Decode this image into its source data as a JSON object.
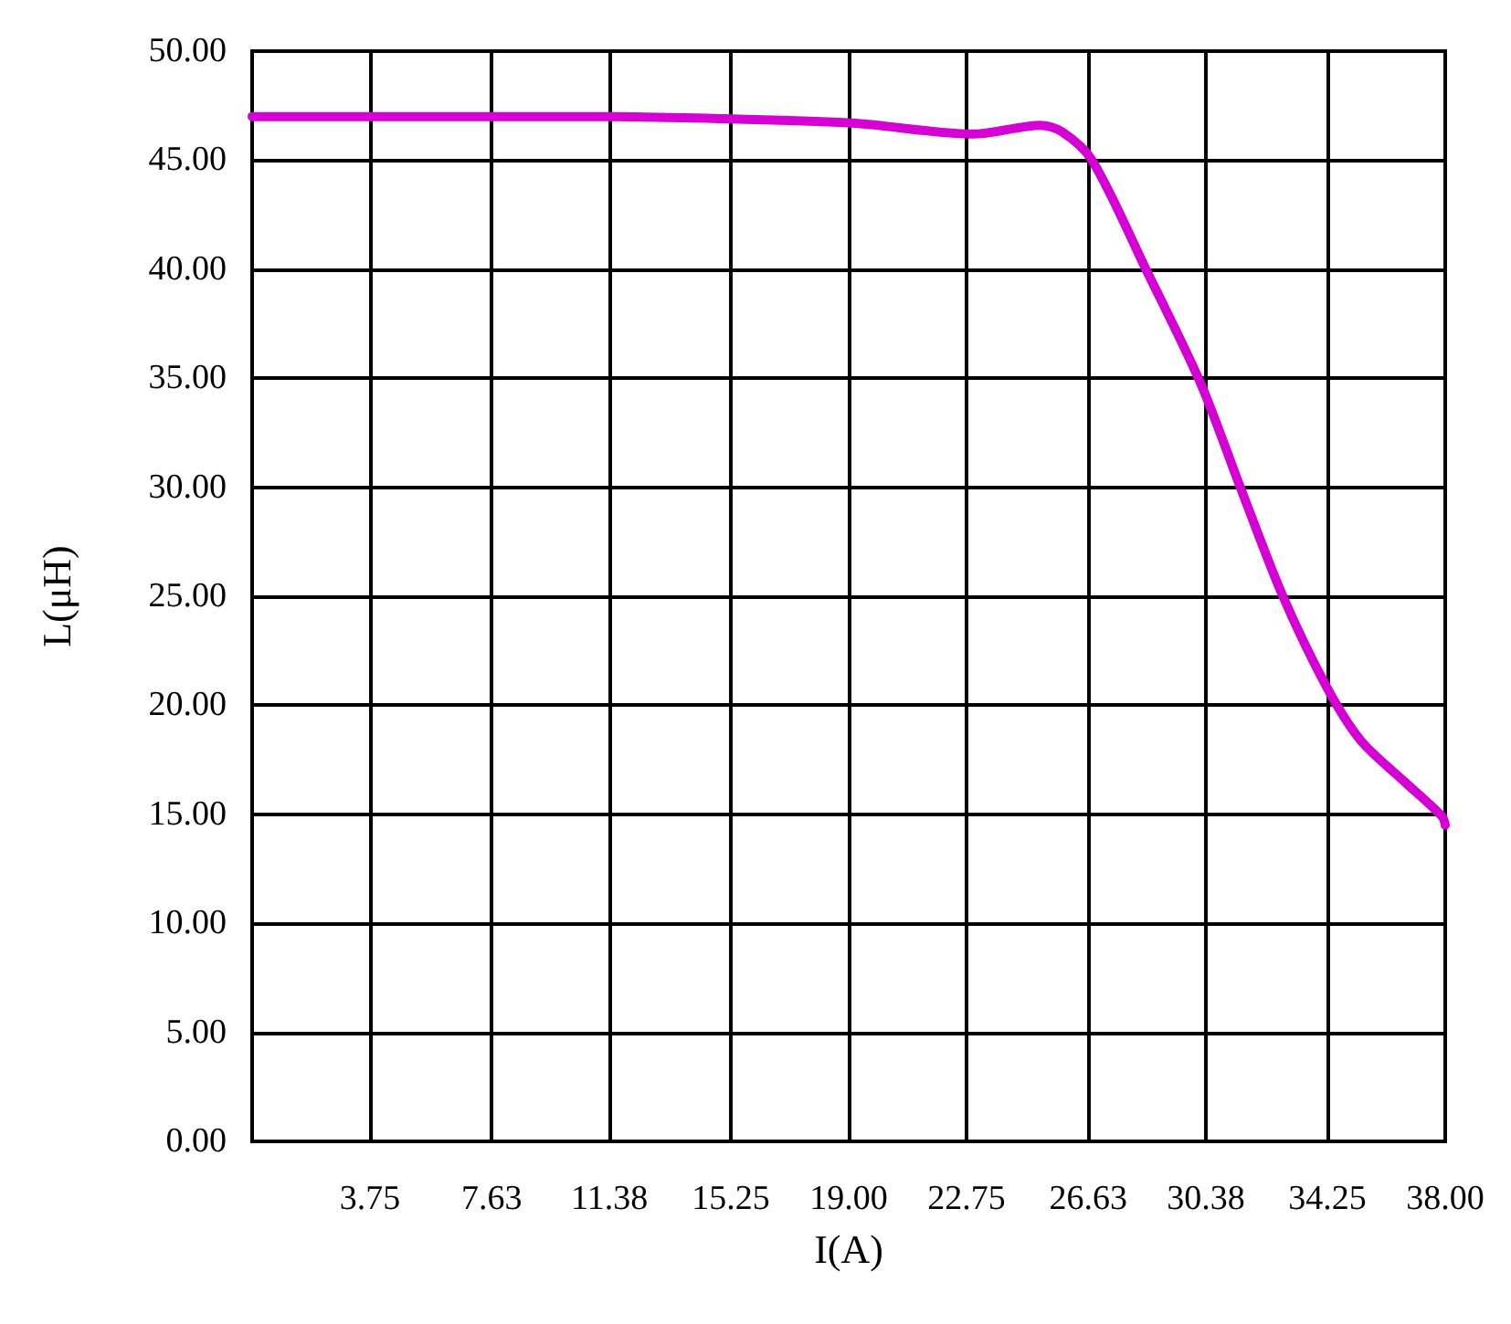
{
  "chart_data": {
    "type": "line",
    "xlabel": "I(A)",
    "ylabel": "L(μH)",
    "x": [
      0,
      5,
      11.4,
      15,
      19.1,
      23.0,
      25.1,
      25.8,
      26.75,
      28.5,
      30.2,
      31.5,
      32.8,
      34.2,
      35.3,
      36.7,
      37.9,
      38
    ],
    "series": [
      {
        "color": "#d400d4",
        "values": [
          47.0,
          47.0,
          47.0,
          46.9,
          46.7,
          46.2,
          46.6,
          46.3,
          45.0,
          39.9,
          34.8,
          29.9,
          25.1,
          20.9,
          18.4,
          16.5,
          14.9,
          14.5
        ]
      }
    ],
    "xlim": [
      0,
      38
    ],
    "xticks": [
      3.75,
      7.63,
      11.38,
      15.25,
      {
        "value": 19,
        "label": "19.00"
      },
      22.75,
      26.63,
      30.38,
      34.25,
      {
        "value": 38,
        "label": "38.00"
      }
    ],
    "ylim": [
      0,
      50
    ],
    "yticks": [
      {
        "value": 0,
        "label": "0.00"
      },
      {
        "value": 5,
        "label": "5.00"
      },
      {
        "value": 10,
        "label": "10.00"
      },
      {
        "value": 15,
        "label": "15.00"
      },
      {
        "value": 20,
        "label": "20.00"
      },
      {
        "value": 25,
        "label": "25.00"
      },
      {
        "value": 30,
        "label": "30.00"
      },
      {
        "value": 35,
        "label": "35.00"
      },
      {
        "value": 40,
        "label": "40.00"
      },
      {
        "value": 45,
        "label": "45.00"
      },
      {
        "value": 50,
        "label": "50.00"
      }
    ],
    "grid": true,
    "marker": "none",
    "line_style": "solid"
  }
}
